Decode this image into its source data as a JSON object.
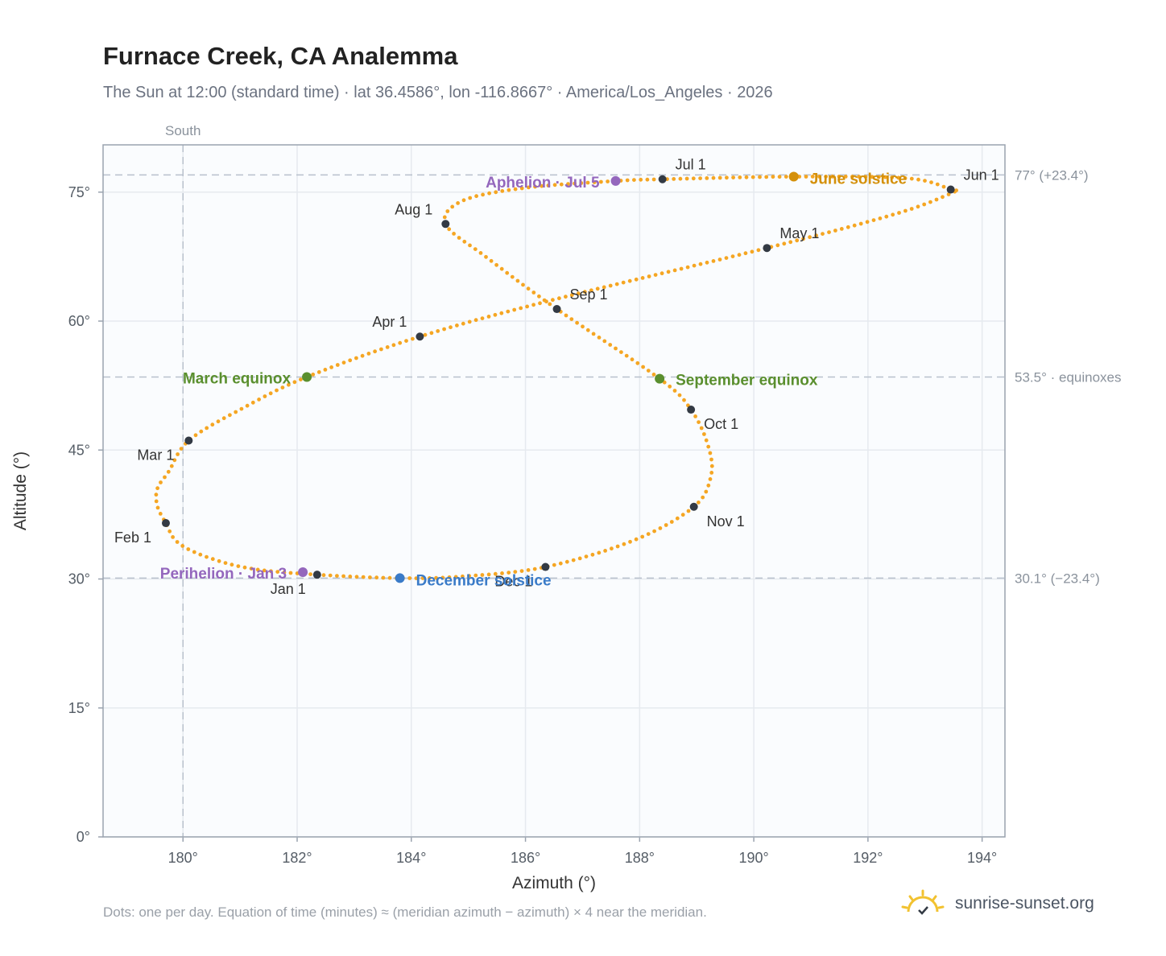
{
  "title": "Furnace Creek, CA Analemma",
  "subtitle": "The Sun at 12:00 (standard time) · lat 36.4586°, lon -116.8667° · America/Los_Angeles · 2026",
  "footnote": "Dots: one per day. Equation of time (minutes) ≈ (meridian azimuth − azimuth) × 4 near the meridian.",
  "brand": "sunrise-sunset.org",
  "colors": {
    "path": "#f5a623",
    "month_marker": "#333a44",
    "solstice_june": "#d4900a",
    "solstice_december": "#3a7bc8",
    "equinox": "#5a8f2e",
    "apsis": "#9467bd",
    "reference_line": "#b8c0cc",
    "logo": "#f2c230"
  },
  "chart_data": {
    "type": "scatter",
    "xlabel": "Azimuth (°)",
    "ylabel": "Altitude (°)",
    "xlim": [
      178.6,
      194.4
    ],
    "ylim": [
      0,
      80.5
    ],
    "xticks": [
      180,
      182,
      184,
      186,
      188,
      190,
      192,
      194
    ],
    "yticks": [
      0,
      15,
      30,
      45,
      60,
      75
    ],
    "xtick_labels": [
      "180°",
      "182°",
      "184°",
      "186°",
      "188°",
      "190°",
      "192°",
      "194°"
    ],
    "ytick_labels": [
      "0°",
      "15°",
      "30°",
      "45°",
      "60°",
      "75°"
    ],
    "grid": true,
    "meridian": {
      "azimuth": 180,
      "label": "South"
    },
    "reference_lines": [
      {
        "altitude": 77.0,
        "label": "77° (+23.4°)"
      },
      {
        "altitude": 53.5,
        "label": "53.5° · equinoxes"
      },
      {
        "altitude": 30.1,
        "label": "30.1° (−23.4°)"
      }
    ],
    "path_points": [
      [
        182.35,
        30.5
      ],
      [
        181.2,
        31.2
      ],
      [
        180.4,
        32.6
      ],
      [
        179.9,
        34.3
      ],
      [
        179.7,
        36.5
      ],
      [
        179.55,
        38.5
      ],
      [
        179.55,
        40.5
      ],
      [
        179.75,
        42.5
      ],
      [
        180.1,
        46.1
      ],
      [
        181.0,
        49.7
      ],
      [
        182.17,
        53.5
      ],
      [
        184.15,
        58.2
      ],
      [
        186.5,
        62.5
      ],
      [
        190.23,
        68.5
      ],
      [
        192.5,
        72.5
      ],
      [
        193.5,
        75.0
      ],
      [
        193.45,
        75.3
      ],
      [
        192.7,
        76.6
      ],
      [
        190.7,
        76.8
      ],
      [
        188.4,
        76.5
      ],
      [
        187.58,
        76.3
      ],
      [
        186.0,
        75.5
      ],
      [
        184.9,
        74.0
      ],
      [
        184.6,
        71.3
      ],
      [
        185.3,
        67.5
      ],
      [
        186.55,
        61.4
      ],
      [
        188.35,
        53.3
      ],
      [
        188.9,
        49.7
      ],
      [
        189.2,
        45.5
      ],
      [
        189.25,
        42.0
      ],
      [
        188.95,
        38.4
      ],
      [
        187.9,
        34.5
      ],
      [
        186.35,
        31.4
      ],
      [
        184.9,
        30.3
      ],
      [
        183.8,
        30.1
      ],
      [
        182.35,
        30.5
      ]
    ],
    "month_markers": [
      {
        "label": "Jan 1",
        "x": 182.35,
        "y": 30.5
      },
      {
        "label": "Feb 1",
        "x": 179.7,
        "y": 36.5
      },
      {
        "label": "Mar 1",
        "x": 180.1,
        "y": 46.1
      },
      {
        "label": "Apr 1",
        "x": 184.15,
        "y": 58.2
      },
      {
        "label": "May 1",
        "x": 190.23,
        "y": 68.5
      },
      {
        "label": "Jun 1",
        "x": 193.45,
        "y": 75.3
      },
      {
        "label": "Jul 1",
        "x": 188.4,
        "y": 76.5
      },
      {
        "label": "Aug 1",
        "x": 184.6,
        "y": 71.3
      },
      {
        "label": "Sep 1",
        "x": 186.55,
        "y": 61.4
      },
      {
        "label": "Oct 1",
        "x": 188.9,
        "y": 49.7
      },
      {
        "label": "Nov 1",
        "x": 188.95,
        "y": 38.4
      },
      {
        "label": "Dec 1",
        "x": 186.35,
        "y": 31.4
      }
    ],
    "events": [
      {
        "label": "June solstice",
        "x": 190.7,
        "y": 76.8,
        "kind": "solstice_june"
      },
      {
        "label": "December solstice",
        "x": 183.8,
        "y": 30.1,
        "kind": "solstice_december"
      },
      {
        "label": "March equinox",
        "x": 182.17,
        "y": 53.5,
        "kind": "equinox"
      },
      {
        "label": "September equinox",
        "x": 188.35,
        "y": 53.3,
        "kind": "equinox"
      },
      {
        "label": "Aphelion · Jul 5",
        "x": 187.58,
        "y": 76.3,
        "kind": "apsis"
      },
      {
        "label": "Perihelion · Jan 3",
        "x": 182.1,
        "y": 30.8,
        "kind": "apsis"
      }
    ]
  }
}
